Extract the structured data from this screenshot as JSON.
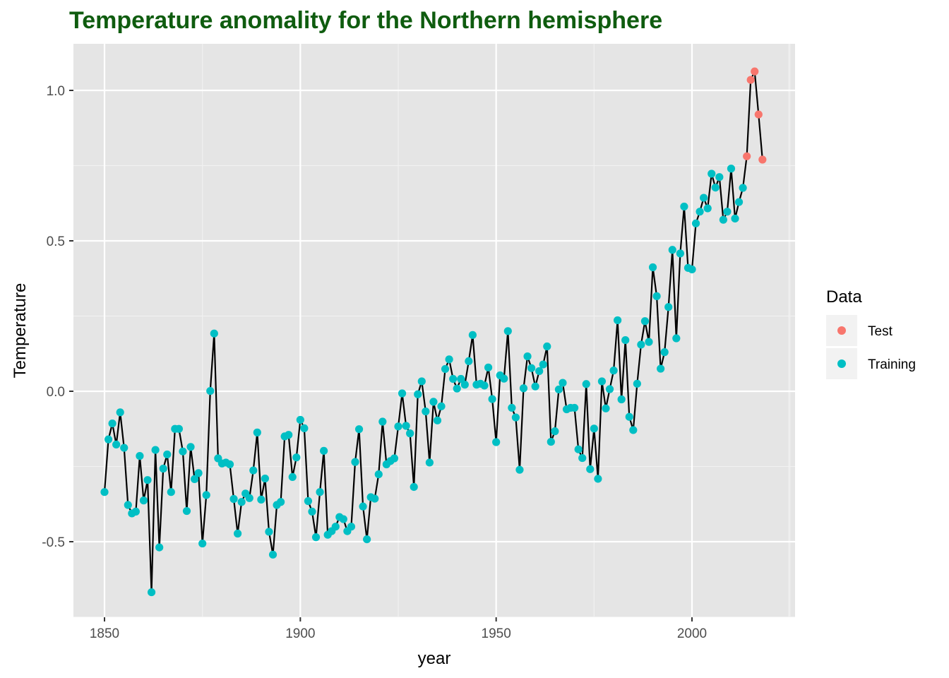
{
  "chart_data": {
    "type": "line",
    "title": "Temperature anomality for the Northern hemisphere",
    "xlabel": "year",
    "ylabel": "Temperature",
    "xlim": [
      1842,
      2226
    ],
    "ylim": [
      -0.75,
      1.13
    ],
    "x_ticks": [
      1850,
      1900,
      1950,
      2000
    ],
    "x_tick_labels": [
      "1850",
      "1900",
      "1950",
      "2000"
    ],
    "y_ticks": [
      -0.5,
      0.0,
      0.5,
      1.0
    ],
    "y_tick_labels": [
      "-0.5",
      "0.0",
      "0.5",
      "1.0"
    ],
    "grid": true,
    "legend": {
      "title": "Data",
      "position": "right",
      "entries": [
        {
          "name": "Test",
          "color": "#f8766d"
        },
        {
          "name": "Training",
          "color": "#00bfc4"
        }
      ]
    },
    "line_color": "#000000",
    "start_year": 1850,
    "series": [
      {
        "name": "Training",
        "color": "#00bfc4",
        "x_start": 1850,
        "values": [
          -0.335,
          -0.16,
          -0.107,
          -0.177,
          -0.07,
          -0.188,
          -0.378,
          -0.406,
          -0.4,
          -0.215,
          -0.363,
          -0.295,
          -0.668,
          -0.195,
          -0.519,
          -0.257,
          -0.21,
          -0.335,
          -0.125,
          -0.125,
          -0.2,
          -0.398,
          -0.185,
          -0.292,
          -0.272,
          -0.506,
          -0.345,
          0.001,
          0.192,
          -0.223,
          -0.24,
          -0.237,
          -0.243,
          -0.358,
          -0.473,
          -0.368,
          -0.34,
          -0.355,
          -0.263,
          -0.137,
          -0.36,
          -0.29,
          -0.467,
          -0.543,
          -0.378,
          -0.368,
          -0.15,
          -0.145,
          -0.285,
          -0.22,
          -0.095,
          -0.123,
          -0.365,
          -0.4,
          -0.485,
          -0.335,
          -0.198,
          -0.477,
          -0.465,
          -0.45,
          -0.418,
          -0.425,
          -0.465,
          -0.45,
          -0.235,
          -0.126,
          -0.383,
          -0.492,
          -0.352,
          -0.357,
          -0.276,
          -0.101,
          -0.243,
          -0.232,
          -0.223,
          -0.117,
          -0.007,
          -0.115,
          -0.14,
          -0.318,
          -0.01,
          0.033,
          -0.067,
          -0.237,
          -0.035,
          -0.097,
          -0.05,
          0.074,
          0.106,
          0.041,
          0.009,
          0.041,
          0.022,
          0.1,
          0.187,
          0.022,
          0.025,
          0.019,
          0.079,
          -0.026,
          -0.169,
          0.053,
          0.042,
          0.2,
          -0.055,
          -0.087,
          -0.261,
          0.01,
          0.116,
          0.077,
          0.016,
          0.067,
          0.089,
          0.149,
          -0.168,
          -0.133,
          0.006,
          0.028,
          -0.06,
          -0.055,
          -0.055,
          -0.193,
          -0.222,
          0.024,
          -0.259,
          -0.124,
          -0.291,
          0.033,
          -0.057,
          0.007,
          0.069,
          0.236,
          -0.027,
          0.17,
          -0.085,
          -0.129,
          0.025,
          0.155,
          0.233,
          0.164,
          0.412,
          0.316,
          0.075,
          0.13,
          0.28,
          0.47,
          0.176,
          0.458,
          0.614,
          0.41,
          0.405,
          0.558,
          0.597,
          0.643,
          0.608,
          0.723,
          0.677,
          0.712,
          0.57,
          0.597,
          0.74,
          0.574,
          0.629,
          0.676
        ]
      },
      {
        "name": "Test",
        "color": "#f8766d",
        "x_start": 2014,
        "values": [
          0.781,
          1.035,
          1.063,
          0.92,
          0.77
        ]
      }
    ]
  }
}
